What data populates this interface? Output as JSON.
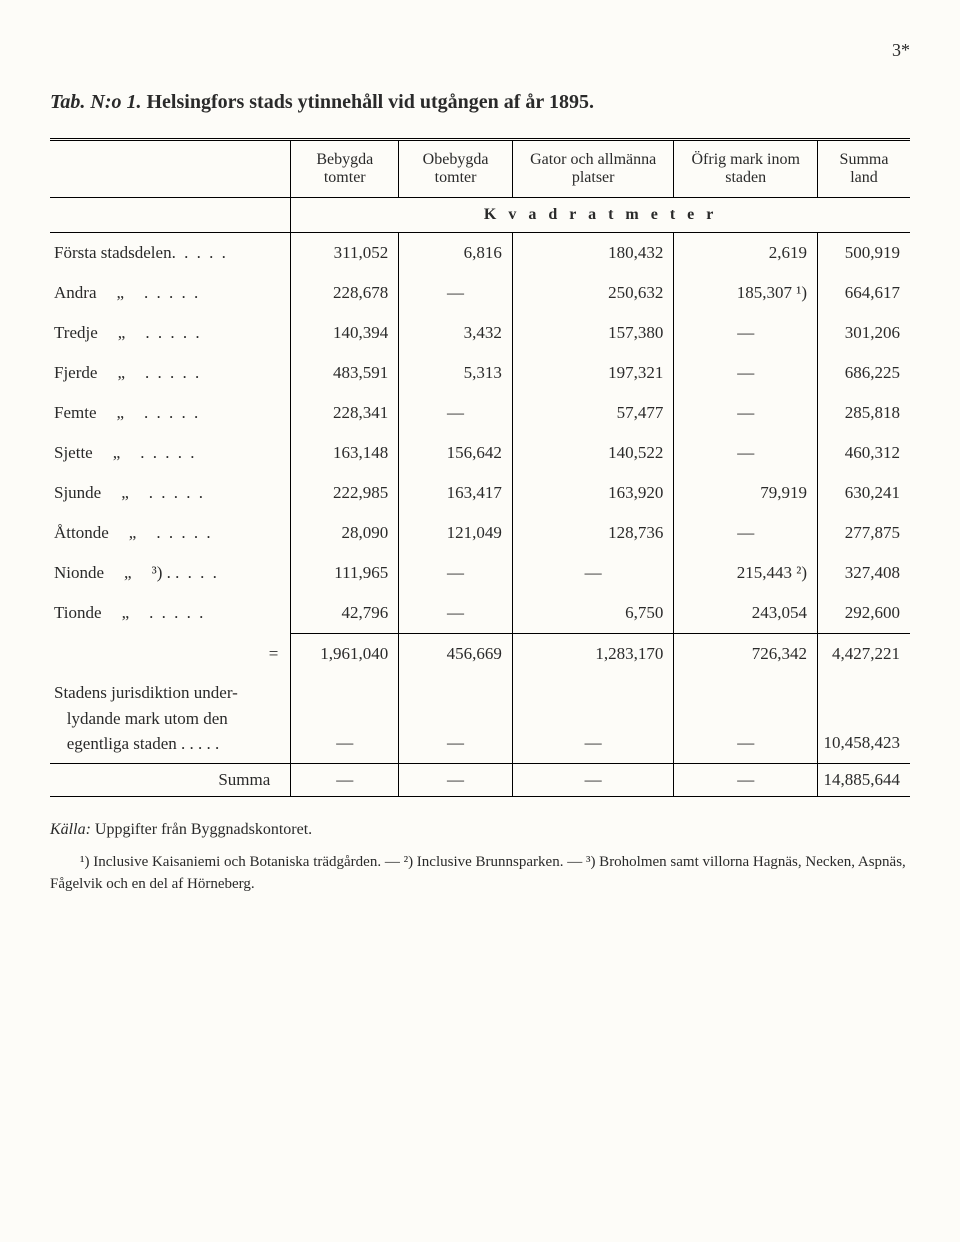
{
  "page_number": "3*",
  "title_prefix": "Tab. N:o 1.",
  "title_main": "Helsingfors stads ytinnehåll vid utgången af år 1895.",
  "columns": {
    "c1": "Bebygda tomter",
    "c2": "Obebygda tomter",
    "c3": "Gator och allmänna platser",
    "c4": "Öfrig mark inom staden",
    "c5": "Summa land"
  },
  "subheader": "K v a d r a t m e t e r",
  "rows": [
    {
      "label": "Första stadsdelen",
      "ditto": "",
      "note": "",
      "dots": ". . . . .",
      "v": [
        "311,052",
        "6,816",
        "180,432",
        "2,619",
        "500,919"
      ]
    },
    {
      "label": "Andra",
      "ditto": "„",
      "note": "",
      "dots": ". . . . .",
      "v": [
        "228,678",
        "—",
        "250,632",
        "185,307 ¹)",
        "664,617"
      ]
    },
    {
      "label": "Tredje",
      "ditto": "„",
      "note": "",
      "dots": ". . . . .",
      "v": [
        "140,394",
        "3,432",
        "157,380",
        "—",
        "301,206"
      ]
    },
    {
      "label": "Fjerde",
      "ditto": "„",
      "note": "",
      "dots": ". . . . .",
      "v": [
        "483,591",
        "5,313",
        "197,321",
        "—",
        "686,225"
      ]
    },
    {
      "label": "Femte",
      "ditto": "„",
      "note": "",
      "dots": ". . . . .",
      "v": [
        "228,341",
        "—",
        "57,477",
        "—",
        "285,818"
      ]
    },
    {
      "label": "Sjette",
      "ditto": "„",
      "note": "",
      "dots": ". . . . .",
      "v": [
        "163,148",
        "156,642",
        "140,522",
        "—",
        "460,312"
      ]
    },
    {
      "label": "Sjunde",
      "ditto": "„",
      "note": "",
      "dots": ". . . . .",
      "v": [
        "222,985",
        "163,417",
        "163,920",
        "79,919",
        "630,241"
      ]
    },
    {
      "label": "Åttonde",
      "ditto": "„",
      "note": "",
      "dots": ". . . . .",
      "v": [
        "28,090",
        "121,049",
        "128,736",
        "—",
        "277,875"
      ]
    },
    {
      "label": "Nionde",
      "ditto": "„",
      "note": "³) .",
      "dots": ". . . .",
      "v": [
        "111,965",
        "—",
        "—",
        "215,443 ²)",
        "327,408"
      ]
    },
    {
      "label": "Tionde",
      "ditto": "„",
      "note": "",
      "dots": ". . . . .",
      "v": [
        "42,796",
        "—",
        "6,750",
        "243,054",
        "292,600"
      ]
    }
  ],
  "totals": {
    "eq": "=",
    "v": [
      "1,961,040",
      "456,669",
      "1,283,170",
      "726,342",
      "4,427,221"
    ]
  },
  "jurisdiction": {
    "line1": "Stadens jurisdiktion under-",
    "line2": "lydande mark utom den",
    "line3": "egentliga staden . . . . .",
    "v": [
      "—",
      "—",
      "—",
      "—",
      "10,458,423"
    ]
  },
  "grand": {
    "label": "Summa",
    "v": [
      "—",
      "—",
      "—",
      "—",
      "14,885,644"
    ]
  },
  "source_prefix": "Källa:",
  "source_text": " Uppgifter från Byggnadskontoret.",
  "footnotes": "¹) Inclusive Kaisaniemi och Botaniska trädgården. — ²) Inclusive Brunnsparken. — ³) Broholmen samt villorna Hagnäs, Necken, Aspnäs, Fågelvik och en del af Hörneberg."
}
